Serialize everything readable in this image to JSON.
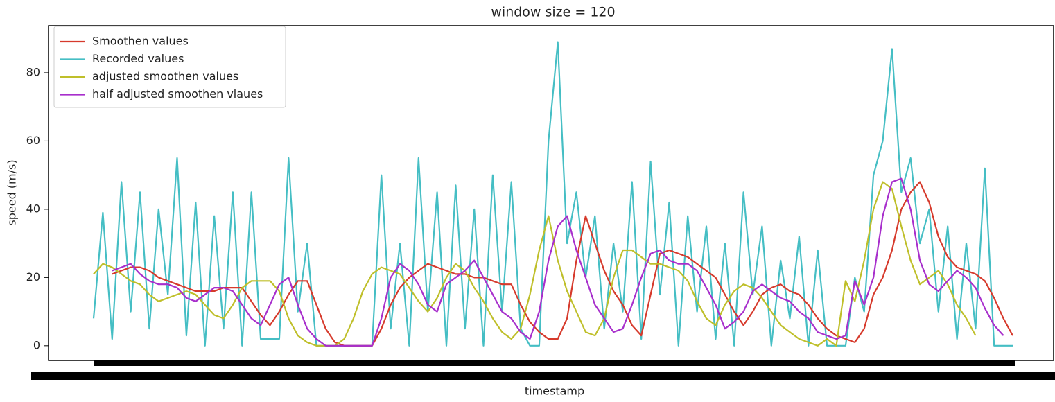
{
  "chart_data": {
    "type": "line",
    "title": "window size = 120",
    "x_label": "timestamp",
    "y_label": "speed (m/s)",
    "categories": [
      null,
      null,
      null,
      null,
      null,
      null,
      null,
      null,
      null,
      null,
      null,
      null,
      null,
      null,
      null,
      null,
      null,
      null,
      null,
      null,
      null,
      null,
      null,
      null,
      null,
      null,
      null,
      null,
      null,
      null,
      null,
      null,
      null,
      null,
      null,
      null,
      null,
      null,
      null,
      null,
      null,
      null,
      null,
      null,
      null,
      null,
      null,
      null,
      null,
      null,
      null,
      null,
      null,
      null,
      null,
      null,
      null,
      null,
      null,
      null,
      null,
      null,
      null,
      null,
      null,
      null,
      null,
      null,
      null,
      null,
      null,
      null,
      null,
      null,
      null,
      null,
      null,
      null,
      null,
      null,
      null,
      null,
      null,
      null,
      null,
      null,
      null,
      null,
      null,
      null,
      null,
      null,
      null,
      null,
      null,
      null,
      null,
      null,
      null,
      null
    ],
    "ylim": [
      -4.3,
      93.8
    ],
    "yticks": [
      0,
      20,
      40,
      60,
      80
    ],
    "grid": false,
    "legend": "upper left",
    "series": [
      {
        "name": "Smoothen values",
        "color": "#d63a2c",
        "values": [
          null,
          null,
          21,
          22,
          23,
          23,
          22,
          20,
          19,
          18,
          17,
          16,
          16,
          16,
          17,
          17,
          17,
          13,
          9,
          6,
          10,
          15,
          19,
          19,
          12,
          5,
          1,
          0,
          0,
          0,
          0,
          5,
          12,
          17,
          20,
          22,
          24,
          23,
          22,
          21,
          21,
          20,
          20,
          19,
          18,
          18,
          12,
          7,
          4,
          2,
          2,
          8,
          25,
          38,
          30,
          22,
          16,
          12,
          6,
          3,
          15,
          27,
          28,
          27,
          26,
          24,
          22,
          20,
          15,
          10,
          6,
          10,
          15,
          17,
          18,
          16,
          15,
          12,
          8,
          5,
          3,
          2,
          1,
          5,
          15,
          20,
          28,
          40,
          45,
          48,
          42,
          32,
          26,
          23,
          22,
          21,
          19,
          14,
          8,
          3
        ]
      },
      {
        "name": "Recorded values",
        "color": "#45bec4",
        "values": [
          8,
          39,
          2,
          48,
          10,
          45,
          5,
          40,
          15,
          55,
          3,
          42,
          0,
          38,
          5,
          45,
          0,
          45,
          2,
          2,
          2,
          55,
          10,
          30,
          0,
          0,
          0,
          0,
          0,
          0,
          0,
          50,
          5,
          30,
          0,
          55,
          10,
          45,
          0,
          47,
          5,
          40,
          0,
          50,
          10,
          48,
          5,
          0,
          0,
          60,
          89,
          30,
          45,
          20,
          38,
          5,
          30,
          10,
          48,
          2,
          54,
          15,
          42,
          0,
          38,
          10,
          35,
          2,
          30,
          0,
          45,
          15,
          35,
          0,
          25,
          8,
          32,
          0,
          28,
          0,
          0,
          0,
          20,
          10,
          50,
          60,
          87,
          45,
          55,
          30,
          40,
          10,
          35,
          2,
          30,
          5,
          52,
          0,
          0,
          0
        ]
      },
      {
        "name": "adjusted smoothen values",
        "color": "#bfbf2a",
        "values": [
          21,
          24,
          23,
          21,
          19,
          18,
          15,
          13,
          14,
          15,
          16,
          15,
          12,
          9,
          8,
          12,
          17,
          19,
          19,
          19,
          16,
          8,
          3,
          1,
          0,
          0,
          0,
          2,
          8,
          16,
          21,
          23,
          22,
          21,
          17,
          13,
          10,
          14,
          20,
          24,
          22,
          17,
          13,
          8,
          4,
          2,
          5,
          15,
          28,
          38,
          25,
          16,
          10,
          4,
          3,
          8,
          20,
          28,
          28,
          26,
          24,
          24,
          23,
          22,
          19,
          13,
          8,
          6,
          12,
          16,
          18,
          17,
          14,
          10,
          6,
          4,
          2,
          1,
          0,
          2,
          0,
          19,
          13,
          25,
          40,
          48,
          46,
          35,
          25,
          18,
          20,
          22,
          18,
          12,
          8,
          3,
          null,
          null,
          null,
          null
        ]
      },
      {
        "name": "half adjusted smoothen vlaues",
        "color": "#a82fcc",
        "values": [
          null,
          null,
          22,
          23,
          24,
          21,
          19,
          18,
          18,
          17,
          14,
          13,
          15,
          17,
          17,
          16,
          12,
          8,
          6,
          12,
          18,
          20,
          12,
          5,
          2,
          0,
          0,
          0,
          0,
          0,
          0,
          8,
          20,
          24,
          22,
          18,
          12,
          10,
          18,
          20,
          22,
          25,
          20,
          15,
          10,
          8,
          4,
          2,
          10,
          25,
          35,
          38,
          28,
          20,
          12,
          8,
          4,
          5,
          12,
          20,
          27,
          28,
          25,
          24,
          24,
          22,
          17,
          12,
          5,
          7,
          10,
          16,
          18,
          16,
          14,
          13,
          10,
          8,
          4,
          3,
          2,
          3,
          19,
          12,
          20,
          38,
          48,
          49,
          40,
          25,
          18,
          16,
          19,
          22,
          20,
          17,
          11,
          6,
          3,
          null
        ]
      }
    ]
  }
}
